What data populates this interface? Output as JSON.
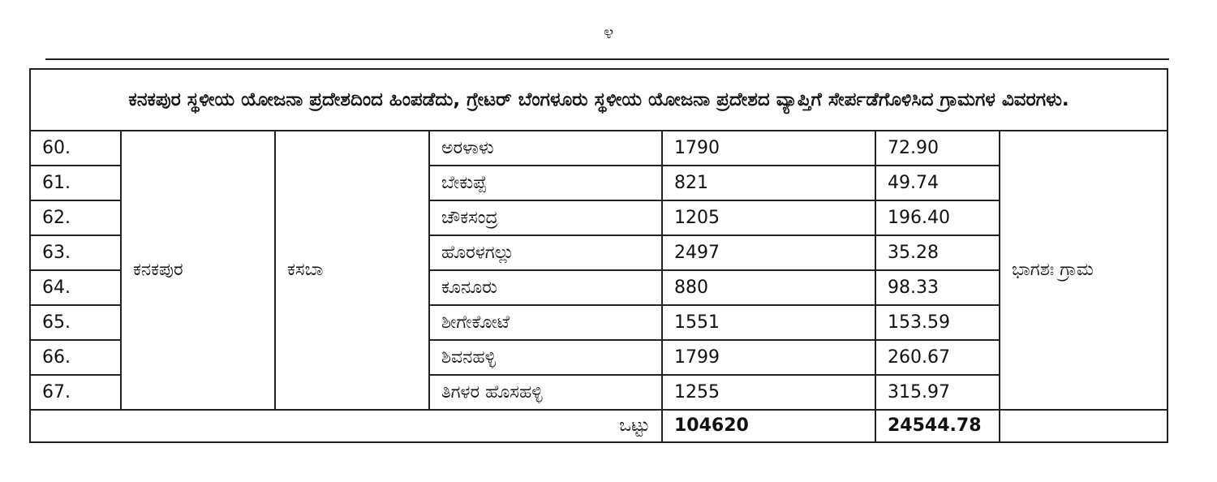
{
  "page_number": "೪",
  "table": {
    "heading": "ಕನಕಪುರ ಸ್ಥಳೀಯ ಯೋಜನಾ ಪ್ರದೇಶದಿಂದ ಹಿಂಪಡೆದು, ಗ್ರೇಟರ್ ಬೆಂಗಳೂರು ಸ್ಥಳೀಯ ಯೋಜನಾ ಪ್ರದೇಶದ ವ್ಯಾಪ್ತಿಗೆ ಸೇರ್ಪಡೆಗೊಳಿಸಿದ ಗ್ರಾಮಗಳ ವಿವರಗಳು.",
    "taluk": "ಕನಕಪುರ",
    "hobli": "ಕಸಬಾ",
    "status": "ಭಾಗಶಃ ಗ್ರಾಮ",
    "rows": [
      {
        "sl_no": "60.",
        "village": "ಅರಳಾಳು",
        "population": "1790",
        "area": "72.90"
      },
      {
        "sl_no": "61.",
        "village": "ಬೇಕುಪ್ಪೆ",
        "population": "821",
        "area": "49.74"
      },
      {
        "sl_no": "62.",
        "village": "ಚೌಕಸಂದ್ರ",
        "population": "1205",
        "area": "196.40"
      },
      {
        "sl_no": "63.",
        "village": "ಹೊರಳಗಲ್ಲು",
        "population": "2497",
        "area": "35.28"
      },
      {
        "sl_no": "64.",
        "village": "ಕೂನೂರು",
        "population": "880",
        "area": "98.33"
      },
      {
        "sl_no": "65.",
        "village": "ಶೀಗೇಕೋಟೆ",
        "population": "1551",
        "area": "153.59"
      },
      {
        "sl_no": "66.",
        "village": "ಶಿವನಹಳ್ಳಿ",
        "population": "1799",
        "area": "260.67"
      },
      {
        "sl_no": "67.",
        "village": "ತಿಗಳರ ಹೊಸಹಳ್ಳಿ",
        "population": "1255",
        "area": "315.97"
      }
    ],
    "total": {
      "label": "ಒಟ್ಟು",
      "population": "104620",
      "area": "24544.78"
    }
  }
}
